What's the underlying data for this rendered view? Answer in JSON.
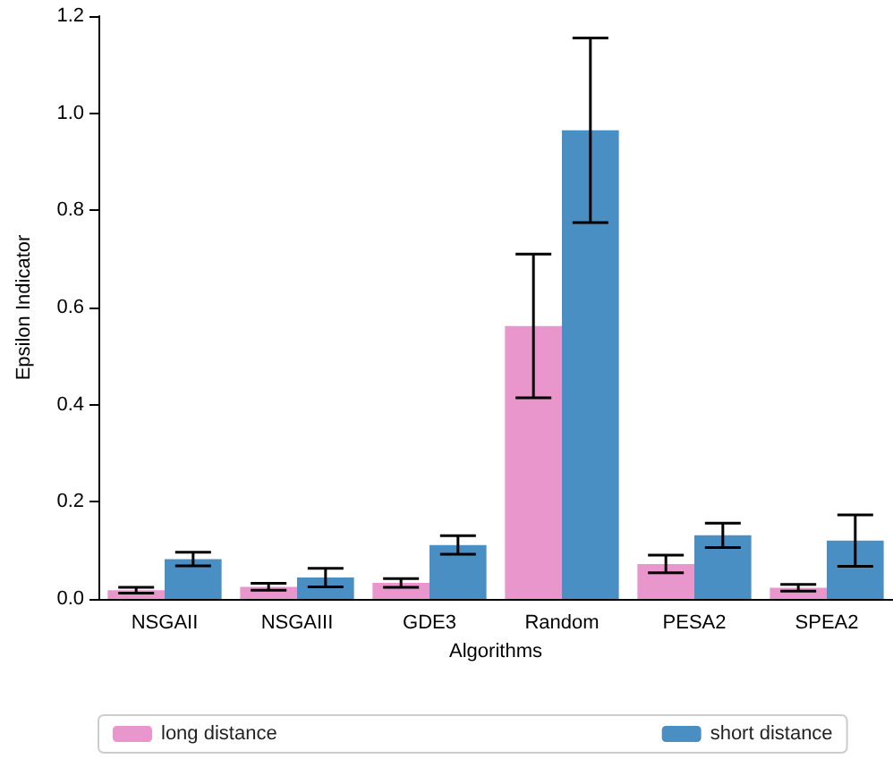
{
  "chart_data": {
    "type": "bar",
    "xlabel": "Algorithms",
    "ylabel": "Epsilon Indicator",
    "categories": [
      "NSGAII",
      "NSGAIII",
      "GDE3",
      "Random",
      "PESA2",
      "SPEA2"
    ],
    "series": [
      {
        "name": "long distance",
        "color": "#e896cc",
        "values": [
          0.018,
          0.025,
          0.033,
          0.562,
          0.072,
          0.023
        ],
        "errors": [
          0.006,
          0.007,
          0.009,
          0.148,
          0.018,
          0.007
        ]
      },
      {
        "name": "short distance",
        "color": "#4a8fc3",
        "values": [
          0.082,
          0.044,
          0.111,
          0.965,
          0.131,
          0.12
        ],
        "errors": [
          0.014,
          0.019,
          0.019,
          0.19,
          0.025,
          0.053
        ]
      }
    ],
    "ylim": [
      0,
      1.2
    ],
    "yticks": [
      {
        "value": 0,
        "label": "0.0"
      },
      {
        "value": 0.2,
        "label": "0.2"
      },
      {
        "value": 0.4,
        "label": "0.4"
      },
      {
        "value": 0.6,
        "label": "0.6"
      },
      {
        "value": 0.8,
        "label": "0.8"
      },
      {
        "value": 1.0,
        "label": "1.0"
      },
      {
        "value": 1.2,
        "label": "1.2"
      }
    ],
    "grid": false,
    "legend": "bottom"
  }
}
